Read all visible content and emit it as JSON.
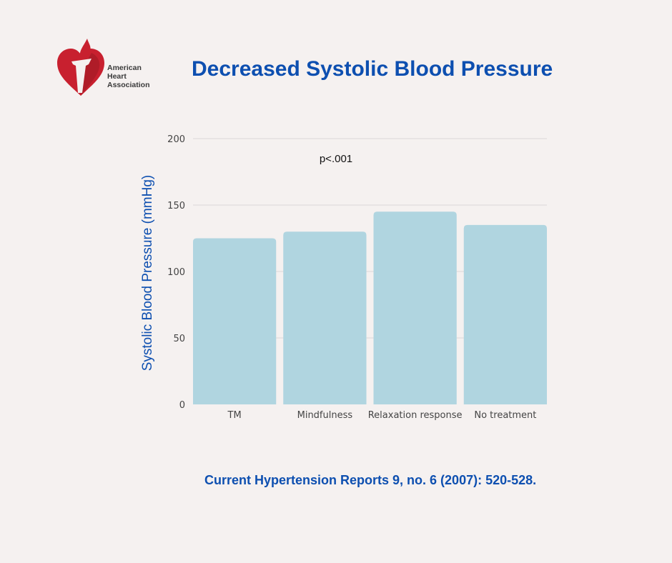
{
  "brand": {
    "logo_text": [
      "American",
      "Heart",
      "Association"
    ],
    "logo_colors": [
      "#c8202f",
      "#9e1b24"
    ]
  },
  "title": "Decreased Systolic Blood Pressure",
  "citation": "Current Hypertension Reports 9, no. 6 (2007): 520-528.",
  "chart_data": {
    "type": "bar",
    "title": "",
    "xlabel": "",
    "ylabel": "Systolic Blood Pressure (mmHg)",
    "categories": [
      "TM",
      "Mindfulness",
      "Relaxation response",
      "No treatment"
    ],
    "values": [
      125,
      130,
      145,
      135
    ],
    "ylim": [
      0,
      200
    ],
    "yticks": [
      0,
      50,
      100,
      150,
      200
    ],
    "grid": true,
    "annotation": "p<.001",
    "bar_color": "#b0d5e0",
    "legend": "none"
  }
}
